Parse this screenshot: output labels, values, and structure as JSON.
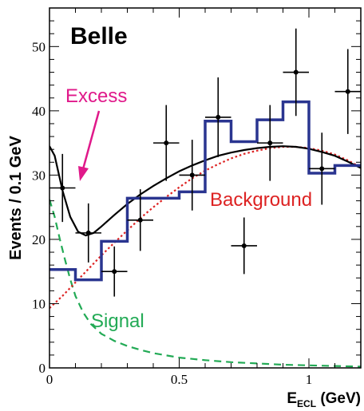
{
  "chart_data": {
    "type": "histogram-with-points",
    "title": "Belle",
    "xlabel_main": "E",
    "xlabel_sub": "ECL",
    "xlabel_unit": " (GeV)",
    "ylabel": "Events / 0.1 GeV",
    "xlim": [
      0,
      1.2
    ],
    "ylim": [
      0,
      56
    ],
    "x_ticks": [
      {
        "value": 0,
        "label": "0"
      },
      {
        "value": 0.5,
        "label": "0.5"
      },
      {
        "value": 1.0,
        "label": "1"
      }
    ],
    "y_ticks": [
      {
        "value": 0,
        "label": "0"
      },
      {
        "value": 10,
        "label": "10"
      },
      {
        "value": 20,
        "label": "20"
      },
      {
        "value": 30,
        "label": "30"
      },
      {
        "value": 40,
        "label": "40"
      },
      {
        "value": 50,
        "label": "50"
      }
    ],
    "histogram": {
      "color": "#2a3590",
      "edges": [
        0,
        0.1,
        0.2,
        0.3,
        0.4,
        0.5,
        0.6,
        0.7,
        0.8,
        0.9,
        1.0,
        1.1,
        1.2
      ],
      "values": [
        15.3,
        13.7,
        19.7,
        26.4,
        26.4,
        27.4,
        38.4,
        35.2,
        38.6,
        41.4,
        30.3,
        31.5
      ]
    },
    "data_points": [
      {
        "x": 0.05,
        "y": 28.0,
        "err_lo": 5.3,
        "err_hi": 5.3
      },
      {
        "x": 0.15,
        "y": 21.0,
        "err_lo": 4.6,
        "err_hi": 4.6
      },
      {
        "x": 0.25,
        "y": 15.0,
        "err_lo": 3.9,
        "err_hi": 3.9
      },
      {
        "x": 0.35,
        "y": 23.0,
        "err_lo": 4.8,
        "err_hi": 4.8
      },
      {
        "x": 0.45,
        "y": 35.0,
        "err_lo": 5.9,
        "err_hi": 5.9
      },
      {
        "x": 0.55,
        "y": 30.0,
        "err_lo": 5.5,
        "err_hi": 5.5
      },
      {
        "x": 0.65,
        "y": 39.0,
        "err_lo": 6.2,
        "err_hi": 6.2
      },
      {
        "x": 0.75,
        "y": 19.0,
        "err_lo": 4.4,
        "err_hi": 4.4
      },
      {
        "x": 0.85,
        "y": 35.0,
        "err_lo": 5.9,
        "err_hi": 5.9
      },
      {
        "x": 0.95,
        "y": 46.0,
        "err_lo": 6.8,
        "err_hi": 6.8
      },
      {
        "x": 1.05,
        "y": 31.0,
        "err_lo": 5.6,
        "err_hi": 5.6
      },
      {
        "x": 1.15,
        "y": 43.0,
        "err_lo": 6.6,
        "err_hi": 6.6
      }
    ],
    "total_curve": {
      "color": "#000000",
      "points": [
        [
          0,
          34.5
        ],
        [
          0.02,
          33
        ],
        [
          0.05,
          27.6
        ],
        [
          0.08,
          23.5
        ],
        [
          0.11,
          21.2
        ],
        [
          0.14,
          20.6
        ],
        [
          0.17,
          21.0
        ],
        [
          0.2,
          22.0
        ],
        [
          0.25,
          23.8
        ],
        [
          0.3,
          25.5
        ],
        [
          0.35,
          27.0
        ],
        [
          0.4,
          28.3
        ],
        [
          0.45,
          29.5
        ],
        [
          0.5,
          30.6
        ],
        [
          0.55,
          31.5
        ],
        [
          0.6,
          32.3
        ],
        [
          0.65,
          33.0
        ],
        [
          0.7,
          33.5
        ],
        [
          0.75,
          33.9
        ],
        [
          0.8,
          34.2
        ],
        [
          0.85,
          34.4
        ],
        [
          0.9,
          34.5
        ],
        [
          0.95,
          34.4
        ],
        [
          1.0,
          34.1
        ],
        [
          1.05,
          33.6
        ],
        [
          1.1,
          33.0
        ],
        [
          1.15,
          32.1
        ],
        [
          1.2,
          31.1
        ]
      ]
    },
    "background_curve": {
      "color": "#dd2222",
      "points": [
        [
          0,
          9.3
        ],
        [
          0.05,
          11.2
        ],
        [
          0.1,
          13.3
        ],
        [
          0.15,
          15.4
        ],
        [
          0.2,
          17.5
        ],
        [
          0.25,
          19.5
        ],
        [
          0.3,
          21.4
        ],
        [
          0.35,
          23.3
        ],
        [
          0.4,
          25.0
        ],
        [
          0.45,
          26.6
        ],
        [
          0.5,
          28.1
        ],
        [
          0.55,
          29.5
        ],
        [
          0.6,
          30.7
        ],
        [
          0.65,
          31.7
        ],
        [
          0.7,
          32.6
        ],
        [
          0.75,
          33.3
        ],
        [
          0.8,
          33.8
        ],
        [
          0.85,
          34.2
        ],
        [
          0.9,
          34.4
        ],
        [
          0.95,
          34.4
        ],
        [
          1.0,
          34.2
        ],
        [
          1.05,
          33.8
        ],
        [
          1.1,
          33.2
        ],
        [
          1.15,
          32.3
        ],
        [
          1.2,
          31.2
        ]
      ]
    },
    "signal_curve": {
      "color": "#22aa55",
      "points": [
        [
          0,
          26.2
        ],
        [
          0.02,
          23.5
        ],
        [
          0.04,
          20.0
        ],
        [
          0.06,
          16.8
        ],
        [
          0.08,
          13.8
        ],
        [
          0.1,
          11.2
        ],
        [
          0.13,
          8.6
        ],
        [
          0.16,
          6.8
        ],
        [
          0.2,
          5.3
        ],
        [
          0.25,
          4.2
        ],
        [
          0.3,
          3.4
        ],
        [
          0.35,
          2.8
        ],
        [
          0.4,
          2.3
        ],
        [
          0.5,
          1.6
        ],
        [
          0.6,
          1.2
        ],
        [
          0.7,
          0.9
        ],
        [
          0.8,
          0.7
        ],
        [
          0.9,
          0.5
        ],
        [
          1.0,
          0.4
        ],
        [
          1.1,
          0.3
        ],
        [
          1.2,
          0.2
        ]
      ]
    },
    "annotations": {
      "excess": {
        "text": "Excess",
        "color": "#e0198a"
      },
      "background": {
        "text": "Background",
        "color": "#dd2222"
      },
      "signal": {
        "text": "Signal",
        "color": "#22aa55"
      }
    }
  }
}
